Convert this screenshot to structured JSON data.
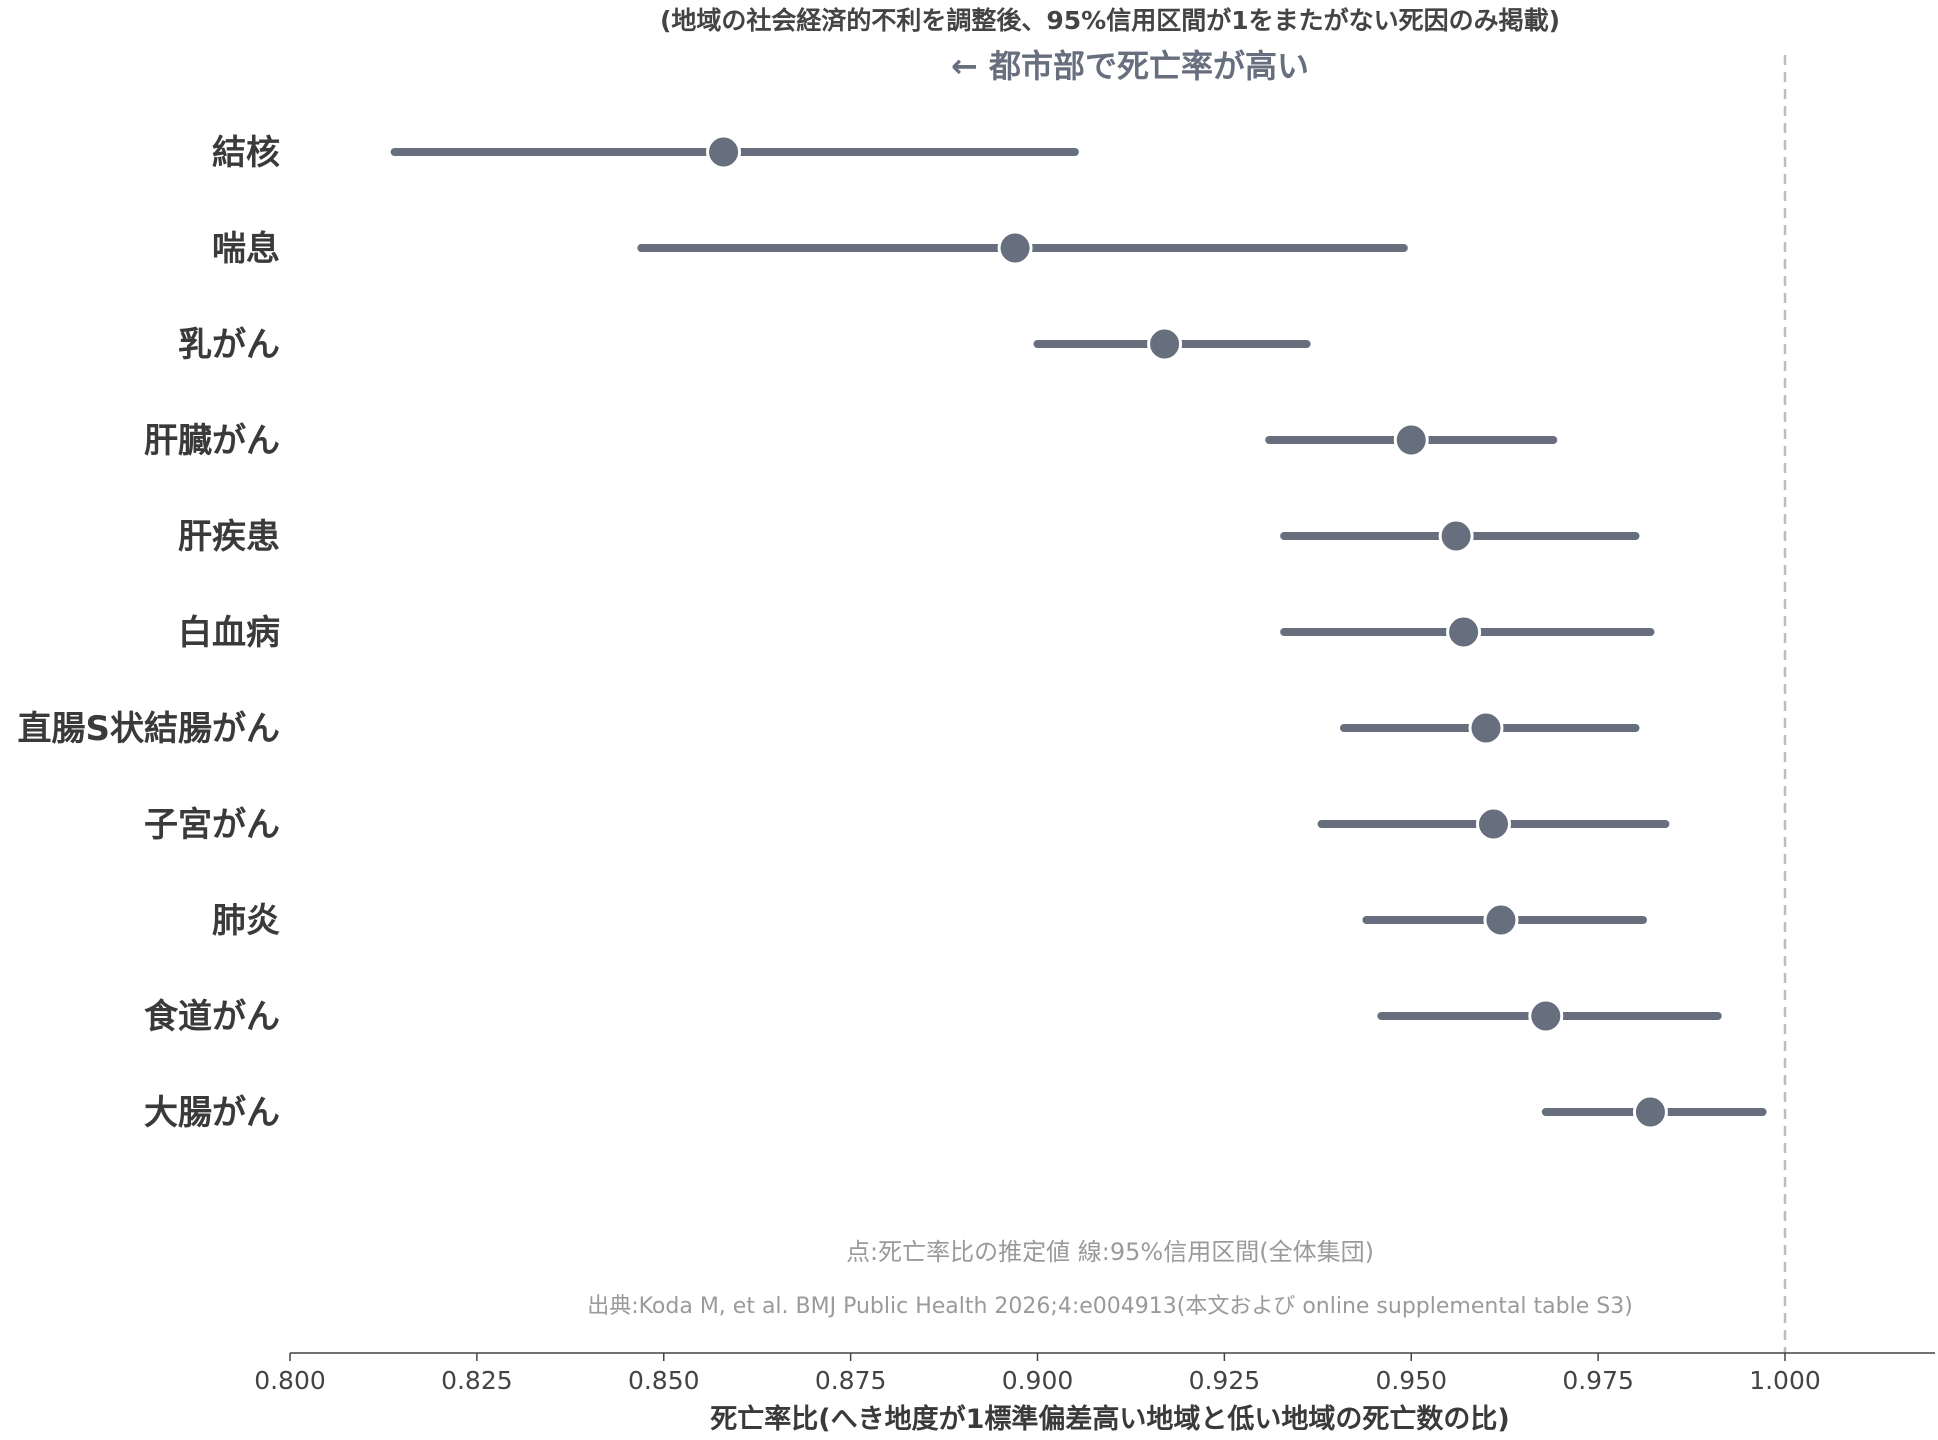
{
  "chart_data": {
    "type": "forest",
    "subtitle": "(地域の社会経済的不利を調整後、95%信用区間が1をまたがない死因のみ掲載)",
    "direction_label": "← 都市部で死亡率が高い",
    "xlabel": "死亡率比(へき地度が1標準偏差高い地域と低い地域の死亡数の比)",
    "xlim": [
      0.8,
      1.0
    ],
    "xticks": [
      "0.800",
      "0.825",
      "0.850",
      "0.875",
      "0.900",
      "0.925",
      "0.950",
      "0.975",
      "1.000"
    ],
    "xtick_values": [
      0.8,
      0.825,
      0.85,
      0.875,
      0.9,
      0.925,
      0.95,
      0.975,
      1.0
    ],
    "reference_line": 1.0,
    "legend_note": "点:死亡率比の推定値 線:95%信用区間(全体集団)",
    "source_note": "出典:Koda M, et al. BMJ Public Health 2026;4:e004913(本文および online supplemental table S3)",
    "rows": [
      {
        "label": "結核",
        "estimate": 0.858,
        "lower": 0.814,
        "upper": 0.905
      },
      {
        "label": "喘息",
        "estimate": 0.897,
        "lower": 0.847,
        "upper": 0.949
      },
      {
        "label": "乳がん",
        "estimate": 0.917,
        "lower": 0.9,
        "upper": 0.936
      },
      {
        "label": "肝臓がん",
        "estimate": 0.95,
        "lower": 0.931,
        "upper": 0.969
      },
      {
        "label": "肝疾患",
        "estimate": 0.956,
        "lower": 0.933,
        "upper": 0.98
      },
      {
        "label": "白血病",
        "estimate": 0.957,
        "lower": 0.933,
        "upper": 0.982
      },
      {
        "label": "直腸S状結腸がん",
        "estimate": 0.96,
        "lower": 0.941,
        "upper": 0.98
      },
      {
        "label": "子宮がん",
        "estimate": 0.961,
        "lower": 0.938,
        "upper": 0.984
      },
      {
        "label": "肺炎",
        "estimate": 0.962,
        "lower": 0.944,
        "upper": 0.981
      },
      {
        "label": "食道がん",
        "estimate": 0.968,
        "lower": 0.946,
        "upper": 0.991
      },
      {
        "label": "大腸がん",
        "estimate": 0.982,
        "lower": 0.968,
        "upper": 0.997
      }
    ],
    "colors": {
      "marker": "#676e7d",
      "line": "#676e7d",
      "label": "#3a3a3a",
      "direction": "#676e7d",
      "note": "#9a9a9a",
      "reference": "#bdbdbd",
      "axis": "#444444"
    }
  }
}
